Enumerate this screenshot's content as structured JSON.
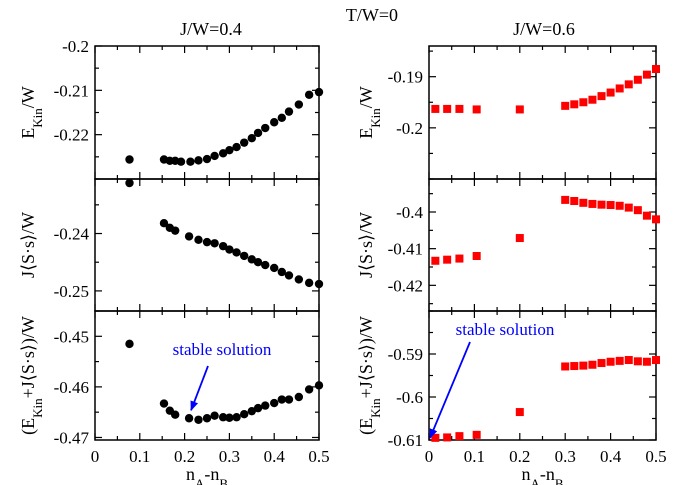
{
  "figure": {
    "center_title": "T/W=0",
    "left_title": "J/W=0.4",
    "right_title": "J/W=0.6"
  },
  "chart_data": [
    {
      "type": "scatter",
      "row": 0,
      "col": 0,
      "ylabel": "E_Kin/W",
      "xlim": [
        0,
        0.5
      ],
      "ylim": [
        -0.23,
        -0.2
      ],
      "yticks": [
        "-0.2",
        "-0.21",
        "-0.22"
      ],
      "ytick_values": [
        -0.2,
        -0.21,
        -0.22
      ],
      "marker": "circle",
      "color": "#000000",
      "x": [
        0.077,
        0.154,
        0.167,
        0.179,
        0.192,
        0.213,
        0.231,
        0.25,
        0.267,
        0.286,
        0.3,
        0.316,
        0.333,
        0.35,
        0.364,
        0.38,
        0.4,
        0.417,
        0.433,
        0.455,
        0.478,
        0.5
      ],
      "y": [
        -0.2256,
        -0.2256,
        -0.2259,
        -0.2259,
        -0.2261,
        -0.2261,
        -0.2258,
        -0.2255,
        -0.2248,
        -0.2242,
        -0.2235,
        -0.2228,
        -0.2218,
        -0.2208,
        -0.2196,
        -0.2185,
        -0.2172,
        -0.2162,
        -0.2148,
        -0.2132,
        -0.211,
        -0.2104
      ]
    },
    {
      "type": "scatter",
      "row": 0,
      "col": 1,
      "ylabel": "E_Kin/W",
      "xlim": [
        0,
        0.5
      ],
      "ylim": [
        -0.21,
        -0.184
      ],
      "yticks": [
        "-0.19",
        "-0.2"
      ],
      "ytick_values": [
        -0.19,
        -0.2
      ],
      "marker": "square",
      "color": "#ff0000",
      "x": [
        0.014,
        0.04,
        0.067,
        0.105,
        0.2,
        0.3,
        0.32,
        0.34,
        0.36,
        0.38,
        0.4,
        0.42,
        0.44,
        0.46,
        0.48,
        0.5
      ],
      "y": [
        -0.1963,
        -0.1963,
        -0.1963,
        -0.1964,
        -0.1964,
        -0.1957,
        -0.1954,
        -0.195,
        -0.1945,
        -0.1938,
        -0.1931,
        -0.1923,
        -0.1915,
        -0.1906,
        -0.1896,
        -0.1885
      ]
    },
    {
      "type": "scatter",
      "row": 1,
      "col": 0,
      "ylabel": "J⟨S·s⟩/W",
      "xlim": [
        0,
        0.5
      ],
      "ylim": [
        -0.2535,
        -0.2305
      ],
      "yticks": [
        "-0.24",
        "-0.25"
      ],
      "ytick_values": [
        -0.24,
        -0.25
      ],
      "marker": "circle",
      "color": "#000000",
      "x": [
        0.077,
        0.154,
        0.167,
        0.179,
        0.21,
        0.231,
        0.25,
        0.267,
        0.286,
        0.3,
        0.316,
        0.333,
        0.35,
        0.364,
        0.38,
        0.4,
        0.417,
        0.433,
        0.455,
        0.478,
        0.5
      ],
      "y": [
        -0.2312,
        -0.2382,
        -0.239,
        -0.2395,
        -0.2405,
        -0.2411,
        -0.2415,
        -0.2417,
        -0.2422,
        -0.2428,
        -0.2433,
        -0.2439,
        -0.2445,
        -0.245,
        -0.2455,
        -0.246,
        -0.2467,
        -0.2473,
        -0.248,
        -0.2486,
        -0.2488
      ]
    },
    {
      "type": "scatter",
      "row": 1,
      "col": 1,
      "ylabel": "J⟨S·s⟩/W",
      "xlim": [
        0,
        0.5
      ],
      "ylim": [
        -0.427,
        -0.391
      ],
      "yticks": [
        "-0.4",
        "-0.41",
        "-0.42"
      ],
      "ytick_values": [
        -0.4,
        -0.41,
        -0.42
      ],
      "marker": "square",
      "color": "#ff0000",
      "x": [
        0.014,
        0.04,
        0.067,
        0.105,
        0.2,
        0.3,
        0.32,
        0.34,
        0.36,
        0.38,
        0.4,
        0.42,
        0.44,
        0.46,
        0.48,
        0.5
      ],
      "y": [
        -0.4133,
        -0.413,
        -0.4127,
        -0.412,
        -0.4071,
        -0.3967,
        -0.397,
        -0.3975,
        -0.3978,
        -0.398,
        -0.3981,
        -0.3983,
        -0.3988,
        -0.3995,
        -0.401,
        -0.402
      ]
    },
    {
      "type": "scatter",
      "row": 2,
      "col": 0,
      "ylabel": "(E_Kin+J⟨S·s⟩)/W",
      "xlabel": "n_A-n_B",
      "xlim": [
        0,
        0.5
      ],
      "ylim": [
        -0.4705,
        -0.445
      ],
      "yticks": [
        "-0.45",
        "-0.46",
        "-0.47"
      ],
      "ytick_values": [
        -0.45,
        -0.46,
        -0.47
      ],
      "xticks": [
        "0",
        "0.1",
        "0.2",
        "0.3",
        "0.4",
        "0.5"
      ],
      "xtick_values": [
        0,
        0.1,
        0.2,
        0.3,
        0.4,
        0.5
      ],
      "marker": "circle",
      "color": "#000000",
      "x": [
        0.077,
        0.154,
        0.167,
        0.179,
        0.21,
        0.231,
        0.25,
        0.267,
        0.286,
        0.3,
        0.316,
        0.333,
        0.35,
        0.364,
        0.38,
        0.4,
        0.417,
        0.433,
        0.455,
        0.478,
        0.5
      ],
      "y": [
        -0.4515,
        -0.4633,
        -0.4647,
        -0.4655,
        -0.4662,
        -0.4665,
        -0.4662,
        -0.4657,
        -0.466,
        -0.4661,
        -0.466,
        -0.4654,
        -0.4648,
        -0.4642,
        -0.4637,
        -0.4632,
        -0.4625,
        -0.4625,
        -0.462,
        -0.4605,
        -0.4597
      ],
      "annotation": {
        "text": "stable solution",
        "points_to": [
          0.21,
          -0.4662
        ]
      }
    },
    {
      "type": "scatter",
      "row": 2,
      "col": 1,
      "ylabel": "(E_Kin+J⟨S·s⟩)/W",
      "xlabel": "n_A-n_B",
      "xlim": [
        0,
        0.5
      ],
      "ylim": [
        -0.61,
        -0.58
      ],
      "yticks": [
        "-0.59",
        "-0.6",
        "-0.61"
      ],
      "ytick_values": [
        -0.59,
        -0.6,
        -0.61
      ],
      "xticks": [
        "0",
        "0.1",
        "0.2",
        "0.3",
        "0.4",
        "0.5"
      ],
      "xtick_values": [
        0,
        0.1,
        0.2,
        0.3,
        0.4,
        0.5
      ],
      "marker": "square",
      "color": "#ff0000",
      "x": [
        0.014,
        0.04,
        0.067,
        0.105,
        0.2,
        0.3,
        0.32,
        0.34,
        0.36,
        0.38,
        0.4,
        0.42,
        0.44,
        0.46,
        0.48,
        0.5
      ],
      "y": [
        -0.6095,
        -0.6094,
        -0.6091,
        -0.6088,
        -0.6035,
        -0.5929,
        -0.5928,
        -0.5927,
        -0.5925,
        -0.5921,
        -0.5918,
        -0.5916,
        -0.5914,
        -0.5917,
        -0.5918,
        -0.5914
      ],
      "annotation": {
        "text": "stable solution",
        "points_to": [
          0.0,
          -0.61
        ]
      }
    }
  ]
}
